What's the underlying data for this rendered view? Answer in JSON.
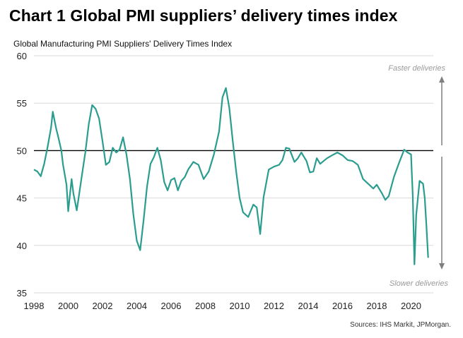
{
  "title": "Chart 1 Global PMI suppliers’ delivery times index",
  "subtitle": "Global Manufacturing PMI Suppliers' Delivery Times Index",
  "source": "Sources: IHS Markit, JPMorgan.",
  "colors": {
    "line": "#2a9d8f",
    "reference": "#000000",
    "grid": "#d9d9d9",
    "arrow": "#7f7f7f",
    "annotation": "#9a9a9a"
  },
  "chart_data": {
    "type": "line",
    "title": "Global Manufacturing PMI Suppliers' Delivery Times Index",
    "xlabel": "",
    "ylabel": "",
    "xlim": [
      1998,
      2021.3
    ],
    "ylim": [
      35,
      60
    ],
    "x_ticks": [
      "1998",
      "2000",
      "2002",
      "2004",
      "2006",
      "2008",
      "2010",
      "2012",
      "2014",
      "2016",
      "2018",
      "2020"
    ],
    "y_ticks": [
      "60",
      "55",
      "50",
      "45",
      "40",
      "35"
    ],
    "grid": "horizontal",
    "reference_line": 50,
    "annotations": {
      "top": "Faster deliveries",
      "bottom": "Slower deliveries"
    },
    "series": [
      {
        "x": [
          1998.0,
          1998.2,
          1998.4,
          1998.6,
          1998.8,
          1999.0,
          1999.1,
          1999.3,
          1999.4,
          1999.6,
          1999.7,
          1999.9,
          2000.0,
          2000.2,
          2000.3,
          2000.5,
          2000.6,
          2000.8,
          2001.0,
          2001.2,
          2001.4,
          2001.6,
          2001.8,
          2002.0,
          2002.2,
          2002.4,
          2002.6,
          2002.8,
          2003.0,
          2003.2,
          2003.4,
          2003.6,
          2003.8,
          2004.0,
          2004.2,
          2004.4,
          2004.6,
          2004.8,
          2005.0,
          2005.2,
          2005.4,
          2005.6,
          2005.8,
          2006.0,
          2006.2,
          2006.4,
          2006.6,
          2006.8,
          2007.0,
          2007.3,
          2007.6,
          2007.9,
          2008.2,
          2008.5,
          2008.8,
          2009.0,
          2009.2,
          2009.4,
          2009.6,
          2009.8,
          2010.0,
          2010.2,
          2010.5,
          2010.8,
          2011.0,
          2011.2,
          2011.4,
          2011.7,
          2012.0,
          2012.3,
          2012.5,
          2012.7,
          2012.9,
          2013.2,
          2013.4,
          2013.6,
          2013.9,
          2014.1,
          2014.3,
          2014.5,
          2014.7,
          2014.9,
          2015.1,
          2015.4,
          2015.7,
          2016.0,
          2016.3,
          2016.6,
          2016.9,
          2017.2,
          2017.5,
          2017.8,
          2018.0,
          2018.3,
          2018.5,
          2018.7,
          2019.0,
          2019.3,
          2019.6,
          2019.8,
          2020.0,
          2020.1,
          2020.2,
          2020.3,
          2020.5,
          2020.7,
          2020.8,
          2020.9,
          2021.0
        ],
        "values": [
          48.0,
          47.8,
          47.3,
          48.6,
          50.4,
          52.4,
          54.1,
          52.3,
          51.6,
          50.0,
          48.5,
          46.4,
          43.6,
          47.0,
          45.5,
          43.7,
          44.9,
          47.4,
          49.8,
          52.8,
          54.8,
          54.4,
          53.4,
          51.0,
          48.5,
          48.8,
          50.3,
          49.8,
          50.1,
          51.4,
          49.6,
          47.0,
          43.3,
          40.5,
          39.5,
          42.7,
          46.2,
          48.6,
          49.3,
          50.3,
          49.0,
          46.7,
          45.8,
          46.9,
          47.1,
          45.8,
          46.8,
          47.2,
          48.0,
          48.8,
          48.5,
          47.0,
          47.8,
          49.6,
          52.0,
          55.6,
          56.6,
          54.5,
          51.0,
          47.8,
          45.0,
          43.5,
          43.0,
          44.3,
          44.0,
          41.2,
          45.1,
          48.0,
          48.3,
          48.5,
          49.0,
          50.3,
          50.2,
          48.8,
          49.2,
          49.8,
          48.9,
          47.7,
          47.8,
          49.2,
          48.6,
          48.9,
          49.2,
          49.5,
          49.8,
          49.5,
          49.0,
          48.9,
          48.5,
          47.0,
          46.5,
          46.0,
          46.4,
          45.5,
          44.8,
          45.2,
          47.2,
          48.7,
          50.1,
          49.8,
          49.6,
          45.3,
          38.0,
          43.2,
          46.8,
          46.5,
          45.0,
          42.0,
          38.7
        ]
      }
    ]
  }
}
